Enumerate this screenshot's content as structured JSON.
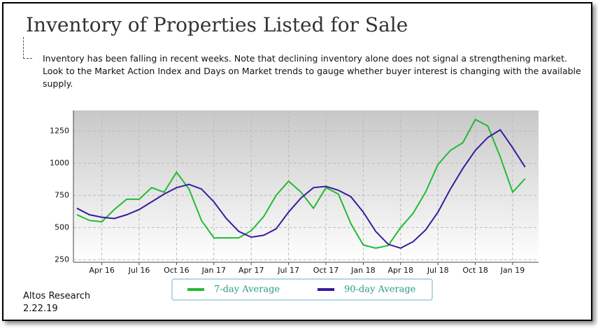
{
  "header": {
    "title": "Inventory of Properties Listed for Sale",
    "description": "Inventory has been falling in recent weeks. Note that declining inventory alone does not signal a strengthening market. Look to the Market Action Index and Days on Market trends to gauge whether buyer interest is changing with the available supply."
  },
  "chart_data": {
    "type": "line",
    "categories": [
      null,
      null,
      "Apr 16",
      null,
      null,
      "Jul 16",
      null,
      null,
      "Oct 16",
      null,
      null,
      "Jan 17",
      null,
      null,
      "Apr 17",
      null,
      null,
      "Jul 17",
      null,
      null,
      "Oct 17",
      null,
      null,
      "Jan 18",
      null,
      null,
      "Apr 18",
      null,
      null,
      "Jul 18",
      null,
      null,
      "Oct 18",
      null,
      null,
      "Jan 19",
      null
    ],
    "series": [
      {
        "name": "7-day Average",
        "color": "#22bb33",
        "values": [
          600,
          555,
          545,
          640,
          720,
          720,
          810,
          775,
          930,
          800,
          555,
          420,
          420,
          420,
          475,
          585,
          750,
          860,
          775,
          650,
          810,
          760,
          530,
          365,
          340,
          360,
          500,
          610,
          775,
          990,
          1100,
          1160,
          1340,
          1290,
          1050,
          775,
          880
        ]
      },
      {
        "name": "90-day Average",
        "color": "#3a1a9e",
        "values": [
          650,
          600,
          580,
          570,
          600,
          640,
          700,
          760,
          810,
          835,
          800,
          700,
          570,
          470,
          425,
          440,
          490,
          620,
          730,
          810,
          820,
          790,
          740,
          620,
          470,
          370,
          340,
          390,
          480,
          620,
          800,
          960,
          1100,
          1200,
          1260,
          1120,
          970
        ]
      }
    ],
    "ylim": [
      230,
      1410
    ],
    "yticks": [
      250,
      500,
      750,
      {
        "value": 1000,
        "label": "1000"
      },
      {
        "value": 1250,
        "label": "1250"
      }
    ],
    "grid": true
  },
  "footer": {
    "source": "Altos Research",
    "date": "2.22.19"
  }
}
